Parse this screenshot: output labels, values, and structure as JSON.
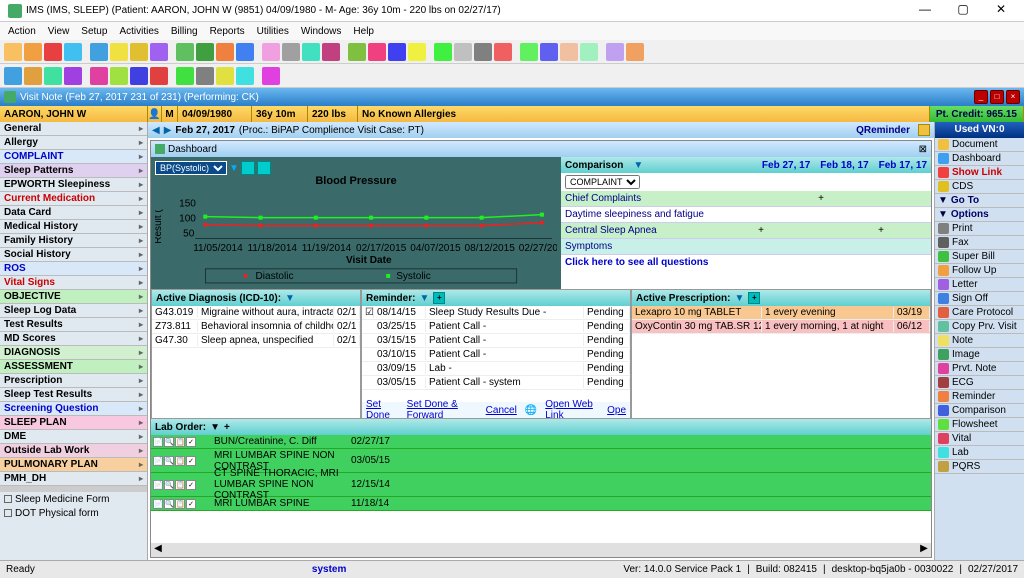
{
  "window": {
    "title": "IMS (IMS, SLEEP)    (Patient: AARON, JOHN W (9851) 04/09/1980 - M- Age: 36y 10m - 220 lbs on 02/27/17)"
  },
  "menu": [
    "Action",
    "View",
    "Setup",
    "Activities",
    "Billing",
    "Reports",
    "Utilities",
    "Windows",
    "Help"
  ],
  "toolbar_colors": [
    "#f8c060",
    "#f0a040",
    "#e84040",
    "#40c0f0",
    "#40a0e0",
    "#f0e040",
    "#e0c030",
    "#a060f0",
    "#60c060",
    "#40a040",
    "#f08040",
    "#4080f0",
    "#f0a0e0",
    "#a0a0a0",
    "#40e0c0",
    "#c04080",
    "#80c040",
    "#f04080",
    "#4040f0",
    "#f0f040",
    "#40f040",
    "#c0c0c0",
    "#808080",
    "#f06060",
    "#60f060",
    "#6060f0",
    "#f0c0a0",
    "#a0f0c0",
    "#c0a0f0",
    "#f0a060"
  ],
  "toolbar2_colors": [
    "#40a0e0",
    "#e0a040",
    "#40e0a0",
    "#a040e0",
    "#e040a0",
    "#a0e040",
    "#4040e0",
    "#e04040",
    "#40e040",
    "#808080",
    "#e0e040",
    "#40e0e0",
    "#e040e0"
  ],
  "visitnote": {
    "title": "Visit Note (Feb 27, 2017  231 of 231) (Performing: CK)"
  },
  "patient": {
    "name": "AARON, JOHN W",
    "sex": "M",
    "dob": "04/09/1980",
    "age": "36y 10m",
    "weight": "220 lbs",
    "allergies": "No Known Allergies",
    "credit_label": "Pt. Credit:",
    "credit_amt": "965.15"
  },
  "leftnav": [
    {
      "label": "General",
      "cls": "bold"
    },
    {
      "label": "Allergy",
      "cls": "bold"
    },
    {
      "label": "COMPLAINT",
      "cls": "hl-blue"
    },
    {
      "label": "Sleep Patterns",
      "cls": "hl-pur"
    },
    {
      "label": "EPWORTH Sleepiness",
      "cls": "bold"
    },
    {
      "label": "Current Medication",
      "cls": "hl-red"
    },
    {
      "label": "Data Card",
      "cls": "bold"
    },
    {
      "label": "Medical History",
      "cls": "bold"
    },
    {
      "label": "Family History",
      "cls": "bold"
    },
    {
      "label": "Social History",
      "cls": "bold"
    },
    {
      "label": "ROS",
      "cls": "hl-blue"
    },
    {
      "label": "Vital Signs",
      "cls": "hl-red"
    },
    {
      "label": "OBJECTIVE",
      "cls": "hl-green"
    },
    {
      "label": "Sleep Log Data",
      "cls": "bold"
    },
    {
      "label": "Test Results",
      "cls": "bold"
    },
    {
      "label": "MD Scores",
      "cls": "bold"
    },
    {
      "label": "DIAGNOSIS",
      "cls": "hl-green2"
    },
    {
      "label": "ASSESSMENT",
      "cls": "hl-green"
    },
    {
      "label": "Prescription",
      "cls": "bold"
    },
    {
      "label": "Sleep Test Results",
      "cls": "bold"
    },
    {
      "label": "Screening Question",
      "cls": "hl-blue"
    },
    {
      "label": "SLEEP PLAN",
      "cls": "hl-pink"
    },
    {
      "label": "DME",
      "cls": "bold"
    },
    {
      "label": "Outside Lab Work",
      "cls": "hl-pink2"
    },
    {
      "label": "PULMONARY PLAN",
      "cls": "hl-orange"
    },
    {
      "label": "PMH_DH",
      "cls": "bold"
    }
  ],
  "forms": [
    "Sleep Medicine Form",
    "DOT Physical form"
  ],
  "visitline": {
    "date": "Feb 27, 2017",
    "desc": "(Proc.: BiPAP Complience Visit  Case: PT)",
    "qreminder": "QReminder"
  },
  "dashboard_label": "Dashboard",
  "chart": {
    "select": "BP(Systolic)",
    "title": "Blood Pressure",
    "ylabel": "Result (",
    "xlabel": "Visit Date",
    "yticks": [
      50,
      100,
      150
    ],
    "xticks": [
      "11/05/2014",
      "11/18/2014",
      "11/19/2014",
      "02/17/2015",
      "04/07/2015",
      "08/12/2015",
      "02/27/2017"
    ],
    "legend": [
      "Diastolic",
      "Systolic"
    ],
    "series": {
      "systolic": {
        "color": "#20f020",
        "y": [
          110,
          108,
          108,
          108,
          108,
          108,
          115
        ]
      },
      "diastolic": {
        "color": "#f02020",
        "y": [
          95,
          92,
          92,
          92,
          92,
          92,
          98
        ]
      }
    }
  },
  "comparison": {
    "title": "Comparison",
    "dropdown": "COMPLAINT",
    "dates": [
      "Feb 27, 17",
      "Feb 18, 17",
      "Feb 17, 17"
    ],
    "rows": [
      {
        "lbl": "Chief Complaints",
        "v": [
          "",
          "+",
          ""
        ],
        "cls": "grn"
      },
      {
        "lbl": "Daytime sleepiness and fatigue",
        "v": [
          "",
          "",
          ""
        ],
        "cls": ""
      },
      {
        "lbl": "Central Sleep Apnea",
        "v": [
          "+",
          "",
          "+"
        ],
        "cls": "grn"
      },
      {
        "lbl": "Symptoms",
        "v": [
          "",
          "",
          ""
        ],
        "cls": "cyan"
      }
    ],
    "link": "Click here to see all questions"
  },
  "active_dx": {
    "title": "Active Diagnosis (ICD-10):",
    "rows": [
      {
        "code": "G43.019",
        "desc": "Migraine without aura, intractable, withou",
        "dt": "02/1"
      },
      {
        "code": "Z73.811",
        "desc": "Behavioral insomnia of childhood, limit se",
        "dt": "02/1"
      },
      {
        "code": "G47.30",
        "desc": "Sleep apnea, unspecified",
        "dt": "02/1"
      }
    ]
  },
  "reminder": {
    "title": "Reminder:",
    "rows": [
      {
        "dt": "08/14/15",
        "txt": "Sleep Study Results Due  -",
        "st": "Pending"
      },
      {
        "dt": "03/25/15",
        "txt": "Patient Call  -",
        "st": "Pending"
      },
      {
        "dt": "03/15/15",
        "txt": "Patient Call  -",
        "st": "Pending"
      },
      {
        "dt": "03/10/15",
        "txt": "Patient Call  -",
        "st": "Pending"
      },
      {
        "dt": "03/09/15",
        "txt": "Lab  -",
        "st": "Pending"
      },
      {
        "dt": "03/05/15",
        "txt": "Patient Call  - system",
        "st": "Pending"
      }
    ],
    "actions": [
      "Set Done",
      "Set Done & Forward",
      "Cancel",
      "Open Web Link",
      "Ope"
    ]
  },
  "active_rx": {
    "title": "Active Prescription:",
    "rows": [
      {
        "drug": "Lexapro 10 mg TABLET",
        "sig": "1 every evening",
        "dt": "03/19",
        "cls": "presrow-oran"
      },
      {
        "drug": "OxyContin 30 mg TAB.SR 12H",
        "sig": "1 every morning,  1 at night",
        "dt": "06/12",
        "cls": "presrow-pink"
      }
    ]
  },
  "lab": {
    "title": "Lab Order:",
    "rows": [
      {
        "nm": "BUN/Creatinine, C. Diff",
        "dt": "02/27/17"
      },
      {
        "nm": "MRI LUMBAR SPINE NON CONTRAST",
        "dt": "03/05/15",
        "tall": true
      },
      {
        "nm": "CT SPINE THORACIC, MRI LUMBAR SPINE NON CONTRAST",
        "dt": "12/15/14",
        "tall": true
      },
      {
        "nm": "MRI LUMBAR SPINE",
        "dt": "11/18/14"
      }
    ]
  },
  "rightnav": {
    "hdr": "Used VN:0",
    "items": [
      {
        "ic": "#f0c040",
        "lbl": "Document"
      },
      {
        "ic": "#40a0f0",
        "lbl": "Dashboard"
      },
      {
        "ic": "#f04040",
        "lbl": "Show Link",
        "cls": "red"
      },
      {
        "ic": "#e0c020",
        "lbl": "CDS"
      },
      {
        "ic": "#4040c0",
        "lbl": "Go To",
        "cls": "blue",
        "tri": true
      },
      {
        "ic": "#c04040",
        "lbl": "Options",
        "cls": "blue",
        "tri": true
      },
      {
        "ic": "#808080",
        "lbl": "Print"
      },
      {
        "ic": "#606060",
        "lbl": "Fax"
      },
      {
        "ic": "#40c040",
        "lbl": "Super Bill"
      },
      {
        "ic": "#f0a040",
        "lbl": "Follow Up"
      },
      {
        "ic": "#a060e0",
        "lbl": "Letter"
      },
      {
        "ic": "#4080e0",
        "lbl": "Sign Off"
      },
      {
        "ic": "#e06040",
        "lbl": "Care Protocol"
      },
      {
        "ic": "#60c0a0",
        "lbl": "Copy Prv. Visit"
      },
      {
        "ic": "#f0e060",
        "lbl": "Note"
      },
      {
        "ic": "#40a060",
        "lbl": "Image"
      },
      {
        "ic": "#e040a0",
        "lbl": "Prvt. Note"
      },
      {
        "ic": "#a04040",
        "lbl": "ECG"
      },
      {
        "ic": "#f08040",
        "lbl": "Reminder"
      },
      {
        "ic": "#4060e0",
        "lbl": "Comparison"
      },
      {
        "ic": "#60e040",
        "lbl": "Flowsheet"
      },
      {
        "ic": "#e04060",
        "lbl": "Vital"
      },
      {
        "ic": "#40e0e0",
        "lbl": "Lab"
      },
      {
        "ic": "#c0a040",
        "lbl": "PQRS"
      }
    ]
  },
  "status": {
    "ready": "Ready",
    "system": "system",
    "ver": "Ver: 14.0.0 Service Pack 1",
    "build": "Build: 082415",
    "host": "desktop-bq5ja0b - 0030022",
    "date": "02/27/2017"
  }
}
